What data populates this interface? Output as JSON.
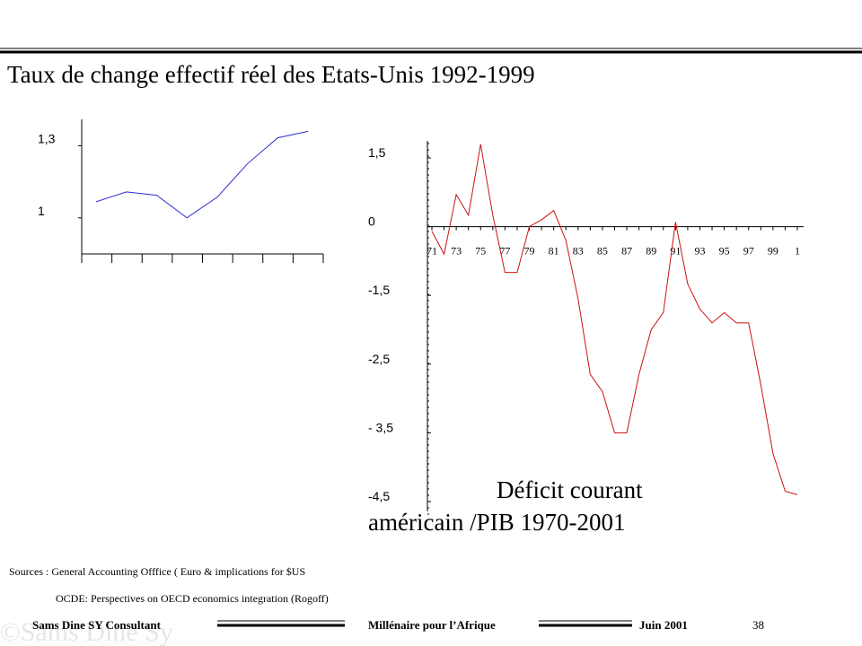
{
  "slide": {
    "title": "Taux de change effectif réel  des Etats-Unis 1992-1999",
    "sources": [
      "Sources : General Accounting  Offfice  ( Euro & implications  for  $US",
      "OCDE: Perspectives  on OECD economics integration  (Rogoff)"
    ],
    "footer": {
      "author": "Sams Dine SY Consultant",
      "center": "Millénaire pour l’Afrique",
      "date": "Juin  2001",
      "page": "38",
      "watermark": "©Sams Dine Sy"
    }
  },
  "chart_data": [
    {
      "type": "line",
      "color": "#2a2ad0",
      "categories": [
        null,
        null,
        null,
        null,
        null,
        null,
        null,
        null
      ],
      "values": [
        1.067,
        1.108,
        1.094,
        1.0,
        1.086,
        1.225,
        1.333,
        1.36
      ],
      "ylim": [
        0.85,
        1.41
      ],
      "yticks": [
        {
          "value": 1,
          "label": "1"
        },
        {
          "value": 1.3,
          "label": "1,3"
        }
      ]
    },
    {
      "type": "line",
      "color": "#cc1010",
      "annotation": [
        "Déficit courant",
        "américain /PIB 1970-2001"
      ],
      "categories": [
        "71",
        null,
        "73",
        null,
        "75",
        null,
        "77",
        null,
        "79",
        null,
        "81",
        null,
        "83",
        null,
        "85",
        null,
        "87",
        null,
        "89",
        null,
        "91",
        null,
        "93",
        null,
        "95",
        null,
        "97",
        null,
        "99",
        null,
        "1"
      ],
      "values": [
        -0.1,
        -0.6,
        0.7,
        0.25,
        1.8,
        0.25,
        -1.0,
        -1.0,
        0,
        0.15,
        0.35,
        -0.3,
        -1.55,
        -2.65,
        -2.9,
        -3.5,
        -3.5,
        -2.65,
        -2.0,
        -1.75,
        0.1,
        -1.25,
        -1.7,
        -1.9,
        -1.75,
        -1.9,
        -1.9,
        -2.8,
        -3.8,
        -4.35,
        -4.4
      ],
      "yticks": [
        {
          "value": 1.5,
          "label": "1,5"
        },
        0,
        {
          "value": -1.5,
          "label": "-1,5"
        },
        {
          "value": -2.5,
          "label": "-2,5"
        },
        {
          "value": -3.5,
          "label": "- 3,5"
        },
        {
          "value": -4.5,
          "label": "-4,5"
        }
      ]
    }
  ]
}
